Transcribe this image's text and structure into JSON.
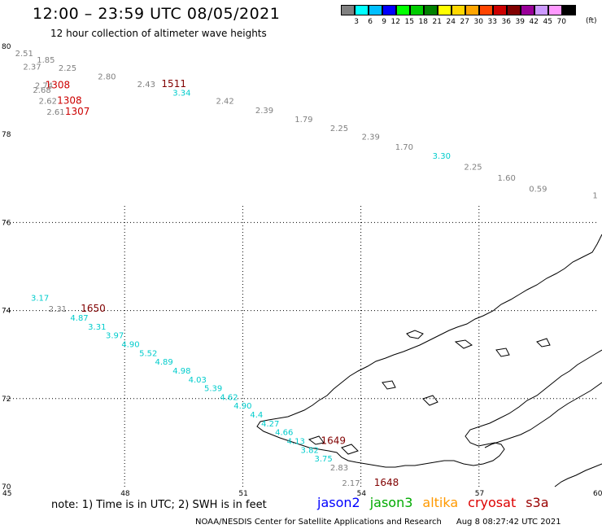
{
  "header": {
    "title": "12:00 – 23:59 UTC 08/05/2021",
    "subtitle": "12 hour collection of altimeter wave heights"
  },
  "legend": {
    "unit": "(ft)",
    "items": [
      {
        "label": "3",
        "color": "#808080"
      },
      {
        "label": "6",
        "color": "#00ffff"
      },
      {
        "label": "9",
        "color": "#00bfff"
      },
      {
        "label": "12",
        "color": "#0000ff"
      },
      {
        "label": "15",
        "color": "#00ff00"
      },
      {
        "label": "18",
        "color": "#00cc00"
      },
      {
        "label": "21",
        "color": "#008000"
      },
      {
        "label": "24",
        "color": "#ffff00"
      },
      {
        "label": "27",
        "color": "#ffd700"
      },
      {
        "label": "30",
        "color": "#ffa500"
      },
      {
        "label": "33",
        "color": "#ff4500"
      },
      {
        "label": "36",
        "color": "#cc0000"
      },
      {
        "label": "39",
        "color": "#800000"
      },
      {
        "label": "42",
        "color": "#990099"
      },
      {
        "label": "45",
        "color": "#cc99ff"
      },
      {
        "label": "70",
        "color": "#ff99ff"
      },
      {
        "label": "",
        "color": "#000000"
      }
    ]
  },
  "map": {
    "lat_labels": [
      "80",
      "78",
      "76",
      "74",
      "72",
      "70"
    ],
    "lon_labels": [
      "45",
      "48",
      "51",
      "54",
      "57",
      "60"
    ]
  },
  "observations": [
    {
      "text": "2.51",
      "lon": 45.45,
      "lat": 79.78,
      "color": "#808080"
    },
    {
      "text": "1.85",
      "lon": 46.0,
      "lat": 79.63,
      "color": "#808080"
    },
    {
      "text": "2.37",
      "lon": 45.65,
      "lat": 79.47,
      "color": "#808080"
    },
    {
      "text": "2.25",
      "lon": 46.55,
      "lat": 79.45,
      "color": "#808080"
    },
    {
      "text": "2.80",
      "lon": 47.55,
      "lat": 79.25,
      "color": "#808080"
    },
    {
      "text": "2.74",
      "lon": 45.95,
      "lat": 79.05,
      "color": "#808080"
    },
    {
      "text": "1308",
      "lon": 46.3,
      "lat": 79.05,
      "color": "#cc0000"
    },
    {
      "text": "2.68",
      "lon": 45.9,
      "lat": 78.95,
      "color": "#808080"
    },
    {
      "text": "2.43",
      "lon": 48.55,
      "lat": 79.08,
      "color": "#808080"
    },
    {
      "text": "1511",
      "lon": 49.25,
      "lat": 79.08,
      "color": "#800000"
    },
    {
      "text": "3.34",
      "lon": 49.45,
      "lat": 78.88,
      "color": "#00cccc"
    },
    {
      "text": "2.62",
      "lon": 46.05,
      "lat": 78.7,
      "color": "#808080"
    },
    {
      "text": "1308",
      "lon": 46.6,
      "lat": 78.7,
      "color": "#cc0000"
    },
    {
      "text": "2.42",
      "lon": 50.55,
      "lat": 78.7,
      "color": "#808080"
    },
    {
      "text": "2.61",
      "lon": 46.25,
      "lat": 78.45,
      "color": "#808080"
    },
    {
      "text": "1307",
      "lon": 46.8,
      "lat": 78.45,
      "color": "#cc0000"
    },
    {
      "text": "2.39",
      "lon": 51.55,
      "lat": 78.48,
      "color": "#808080"
    },
    {
      "text": "1.79",
      "lon": 52.55,
      "lat": 78.28,
      "color": "#808080"
    },
    {
      "text": "2.25",
      "lon": 53.45,
      "lat": 78.08,
      "color": "#808080"
    },
    {
      "text": "2.39",
      "lon": 54.25,
      "lat": 77.88,
      "color": "#808080"
    },
    {
      "text": "1.70",
      "lon": 55.1,
      "lat": 77.65,
      "color": "#808080"
    },
    {
      "text": "3.30",
      "lon": 56.05,
      "lat": 77.45,
      "color": "#00cccc"
    },
    {
      "text": "2.25",
      "lon": 56.85,
      "lat": 77.2,
      "color": "#808080"
    },
    {
      "text": "1.60",
      "lon": 57.7,
      "lat": 76.95,
      "color": "#808080"
    },
    {
      "text": "0.59",
      "lon": 58.5,
      "lat": 76.7,
      "color": "#808080"
    },
    {
      "text": "1",
      "lon": 59.95,
      "lat": 76.55,
      "color": "#808080"
    },
    {
      "text": "3.17",
      "lon": 45.85,
      "lat": 74.22,
      "color": "#00cccc"
    },
    {
      "text": "2.31",
      "lon": 46.3,
      "lat": 73.97,
      "color": "#808080"
    },
    {
      "text": "1650",
      "lon": 47.2,
      "lat": 73.97,
      "color": "#800000"
    },
    {
      "text": "4.87",
      "lon": 46.85,
      "lat": 73.77,
      "color": "#00cccc"
    },
    {
      "text": "3.31",
      "lon": 47.3,
      "lat": 73.57,
      "color": "#00cccc"
    },
    {
      "text": "3.97",
      "lon": 47.75,
      "lat": 73.37,
      "color": "#00cccc"
    },
    {
      "text": "4.90",
      "lon": 48.15,
      "lat": 73.17,
      "color": "#00cccc"
    },
    {
      "text": "5.52",
      "lon": 48.6,
      "lat": 72.97,
      "color": "#00cccc"
    },
    {
      "text": "4.89",
      "lon": 49.0,
      "lat": 72.77,
      "color": "#00cccc"
    },
    {
      "text": "4.98",
      "lon": 49.45,
      "lat": 72.57,
      "color": "#00cccc"
    },
    {
      "text": "4.03",
      "lon": 49.85,
      "lat": 72.37,
      "color": "#00cccc"
    },
    {
      "text": "5.39",
      "lon": 50.25,
      "lat": 72.17,
      "color": "#00cccc"
    },
    {
      "text": "4.62",
      "lon": 50.65,
      "lat": 71.97,
      "color": "#00cccc"
    },
    {
      "text": "4.90",
      "lon": 51.0,
      "lat": 71.77,
      "color": "#00cccc"
    },
    {
      "text": "4.4",
      "lon": 51.35,
      "lat": 71.57,
      "color": "#00cccc"
    },
    {
      "text": "4.27",
      "lon": 51.7,
      "lat": 71.37,
      "color": "#00cccc"
    },
    {
      "text": "4.66",
      "lon": 52.05,
      "lat": 71.17,
      "color": "#00cccc"
    },
    {
      "text": "4.13",
      "lon": 52.35,
      "lat": 70.97,
      "color": "#00cccc"
    },
    {
      "text": "1649",
      "lon": 53.3,
      "lat": 70.97,
      "color": "#800000"
    },
    {
      "text": "3.82",
      "lon": 52.7,
      "lat": 70.77,
      "color": "#00cccc"
    },
    {
      "text": "3.75",
      "lon": 53.05,
      "lat": 70.57,
      "color": "#00cccc"
    },
    {
      "text": "2.83",
      "lon": 53.45,
      "lat": 70.37,
      "color": "#808080"
    },
    {
      "text": "2.17",
      "lon": 53.75,
      "lat": 70.02,
      "color": "#808080"
    },
    {
      "text": "1648",
      "lon": 54.65,
      "lat": 70.02,
      "color": "#800000"
    }
  ],
  "footer": {
    "note": "note:  1) Time is in UTC;  2) SWH is in feet",
    "satellites": [
      {
        "name": "jason2",
        "color": "#0000ff"
      },
      {
        "name": "jason3",
        "color": "#00aa00"
      },
      {
        "name": "altika",
        "color": "#ff9900"
      },
      {
        "name": "cryosat",
        "color": "#dd0000"
      },
      {
        "name": "s3a",
        "color": "#990000"
      }
    ],
    "credit": "NOAA/NESDIS Center for Satellite Applications and Research",
    "timestamp": "Aug  8 08:27:42 UTC 2021"
  }
}
